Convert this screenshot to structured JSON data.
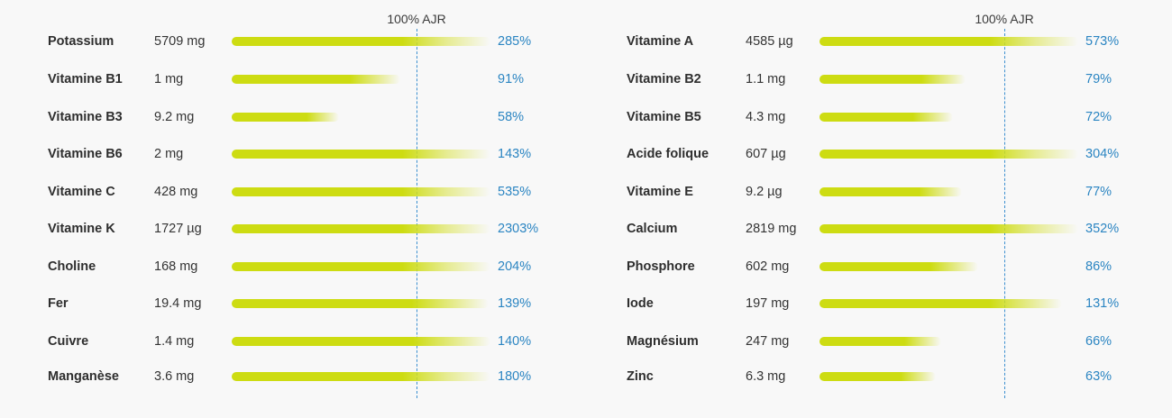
{
  "colors": {
    "bar": "#cddc12",
    "percent_text": "#2b85c2",
    "reference_line": "#3c8fd0"
  },
  "chart_data": [
    {
      "type": "bar",
      "orientation": "horizontal",
      "reference_label": "100% AJR",
      "reference_value": 100,
      "categories": [
        "Potassium",
        "Vitamine B1",
        "Vitamine B3",
        "Vitamine B6",
        "Vitamine C",
        "Vitamine K",
        "Choline",
        "Fer",
        "Cuivre",
        "Manganèse"
      ],
      "amounts": [
        "5709 mg",
        "1 mg",
        "9.2 mg",
        "2 mg",
        "428 mg",
        "1727 µg",
        "168 mg",
        "19.4 mg",
        "1.4 mg",
        "3.6 mg"
      ],
      "percent_labels": [
        "285%",
        "91%",
        "58%",
        "143%",
        "535%",
        "2303%",
        "204%",
        "139%",
        "140%",
        "180%"
      ],
      "values": [
        285,
        91,
        58,
        143,
        535,
        2303,
        204,
        139,
        140,
        180
      ],
      "bar_cap_percent": 140
    },
    {
      "type": "bar",
      "orientation": "horizontal",
      "reference_label": "100% AJR",
      "reference_value": 100,
      "categories": [
        "Vitamine A",
        "Vitamine B2",
        "Vitamine B5",
        "Acide folique",
        "Vitamine E",
        "Calcium",
        "Phosphore",
        "Iode",
        "Magnésium",
        "Zinc"
      ],
      "amounts": [
        "4585 µg",
        "1.1 mg",
        "4.3 mg",
        "607 µg",
        "9.2 µg",
        "2819 mg",
        "602 mg",
        "197 mg",
        "247 mg",
        "6.3 mg"
      ],
      "percent_labels": [
        "573%",
        "79%",
        "72%",
        "304%",
        "77%",
        "352%",
        "86%",
        "131%",
        "66%",
        "63%"
      ],
      "values": [
        573,
        79,
        72,
        304,
        77,
        352,
        86,
        131,
        66,
        63
      ],
      "bar_cap_percent": 140
    }
  ]
}
